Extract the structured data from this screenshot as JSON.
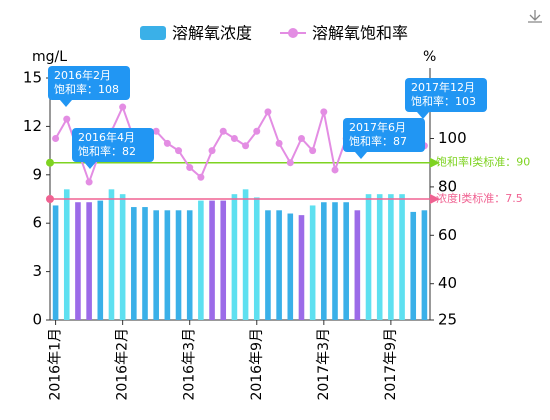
{
  "chart_data": {
    "type": "bar",
    "legend": [
      "溶解氧浓度",
      "溶解氧饱和率"
    ],
    "y_axis_label": "mg/L",
    "y2_axis_label": "%",
    "categories": [
      "2016年1月",
      null,
      null,
      null,
      null,
      null,
      "2016年2月",
      null,
      null,
      null,
      null,
      null,
      "2016年3月",
      null,
      null,
      null,
      null,
      null,
      "2016年9月",
      null,
      null,
      null,
      null,
      null,
      "2017年3月",
      null,
      null,
      null,
      null,
      null,
      "2017年9月",
      null,
      null,
      null
    ],
    "series": [
      {
        "name": "溶解氧浓度",
        "type": "bar",
        "color": "#3ab0e8",
        "colors": [
          "#3ab0e8",
          "#5ee0f0",
          "#9c6be8",
          "#9c6be8",
          "#3ab0e8",
          "#5ee0f0",
          "#5ee0f0",
          "#3ab0e8",
          "#3ab0e8",
          "#3ab0e8",
          "#3ab0e8",
          "#3ab0e8",
          "#3ab0e8",
          "#5ee0f0",
          "#9c6be8",
          "#9c6be8",
          "#5ee0f0",
          "#5ee0f0",
          "#5ee0f0",
          "#3ab0e8",
          "#3ab0e8",
          "#3ab0e8",
          "#9c6be8",
          "#5ee0f0",
          "#3ab0e8",
          "#3ab0e8",
          "#3ab0e8",
          "#9c6be8",
          "#5ee0f0",
          "#5ee0f0",
          "#5ee0f0",
          "#5ee0f0",
          "#3ab0e8",
          "#3ab0e8"
        ],
        "values": [
          7.1,
          8.1,
          7.3,
          7.3,
          7.4,
          8.1,
          7.8,
          7.0,
          7.0,
          6.8,
          6.8,
          6.8,
          6.8,
          7.4,
          7.4,
          7.4,
          7.8,
          8.1,
          7.6,
          6.8,
          6.8,
          6.6,
          6.5,
          7.1,
          7.3,
          7.3,
          7.3,
          6.8,
          7.8,
          7.8,
          7.8,
          7.8,
          6.7,
          6.8
        ]
      },
      {
        "name": "溶解氧饱和率",
        "type": "line",
        "axis": "y2",
        "color": "#e38de3",
        "values": [
          100,
          108,
          95,
          82,
          95,
          103,
          113,
          100,
          100,
          103,
          98,
          95,
          88,
          84,
          95,
          103,
          100,
          97,
          103,
          111,
          98,
          90,
          100,
          95,
          111,
          87,
          100,
          103,
          98,
          97,
          103,
          100,
          103,
          97
        ]
      }
    ],
    "tooltips": [
      {
        "title": "2016年2月",
        "text": "饱和率：108"
      },
      {
        "title": "2016年4月",
        "text": "饱和率：82"
      },
      {
        "title": "2017年6月",
        "text": "饱和率：87"
      },
      {
        "title": "2017年12月",
        "text": "饱和率：103"
      }
    ],
    "mark_lines": [
      {
        "label": "饱和率Ⅰ类标准：90",
        "value": 90,
        "axis": "y2",
        "color": "#7ed321"
      },
      {
        "label": "浓度Ⅰ类标准：7.5",
        "value": 7.5,
        "axis": "y",
        "color": "#f06292"
      }
    ],
    "ylim": [
      0,
      15
    ],
    "yticks": [
      0,
      3,
      6,
      9,
      12,
      15
    ],
    "y2lim": [
      25,
      125
    ],
    "y2ticks": [
      25,
      40,
      60,
      80,
      100
    ]
  }
}
